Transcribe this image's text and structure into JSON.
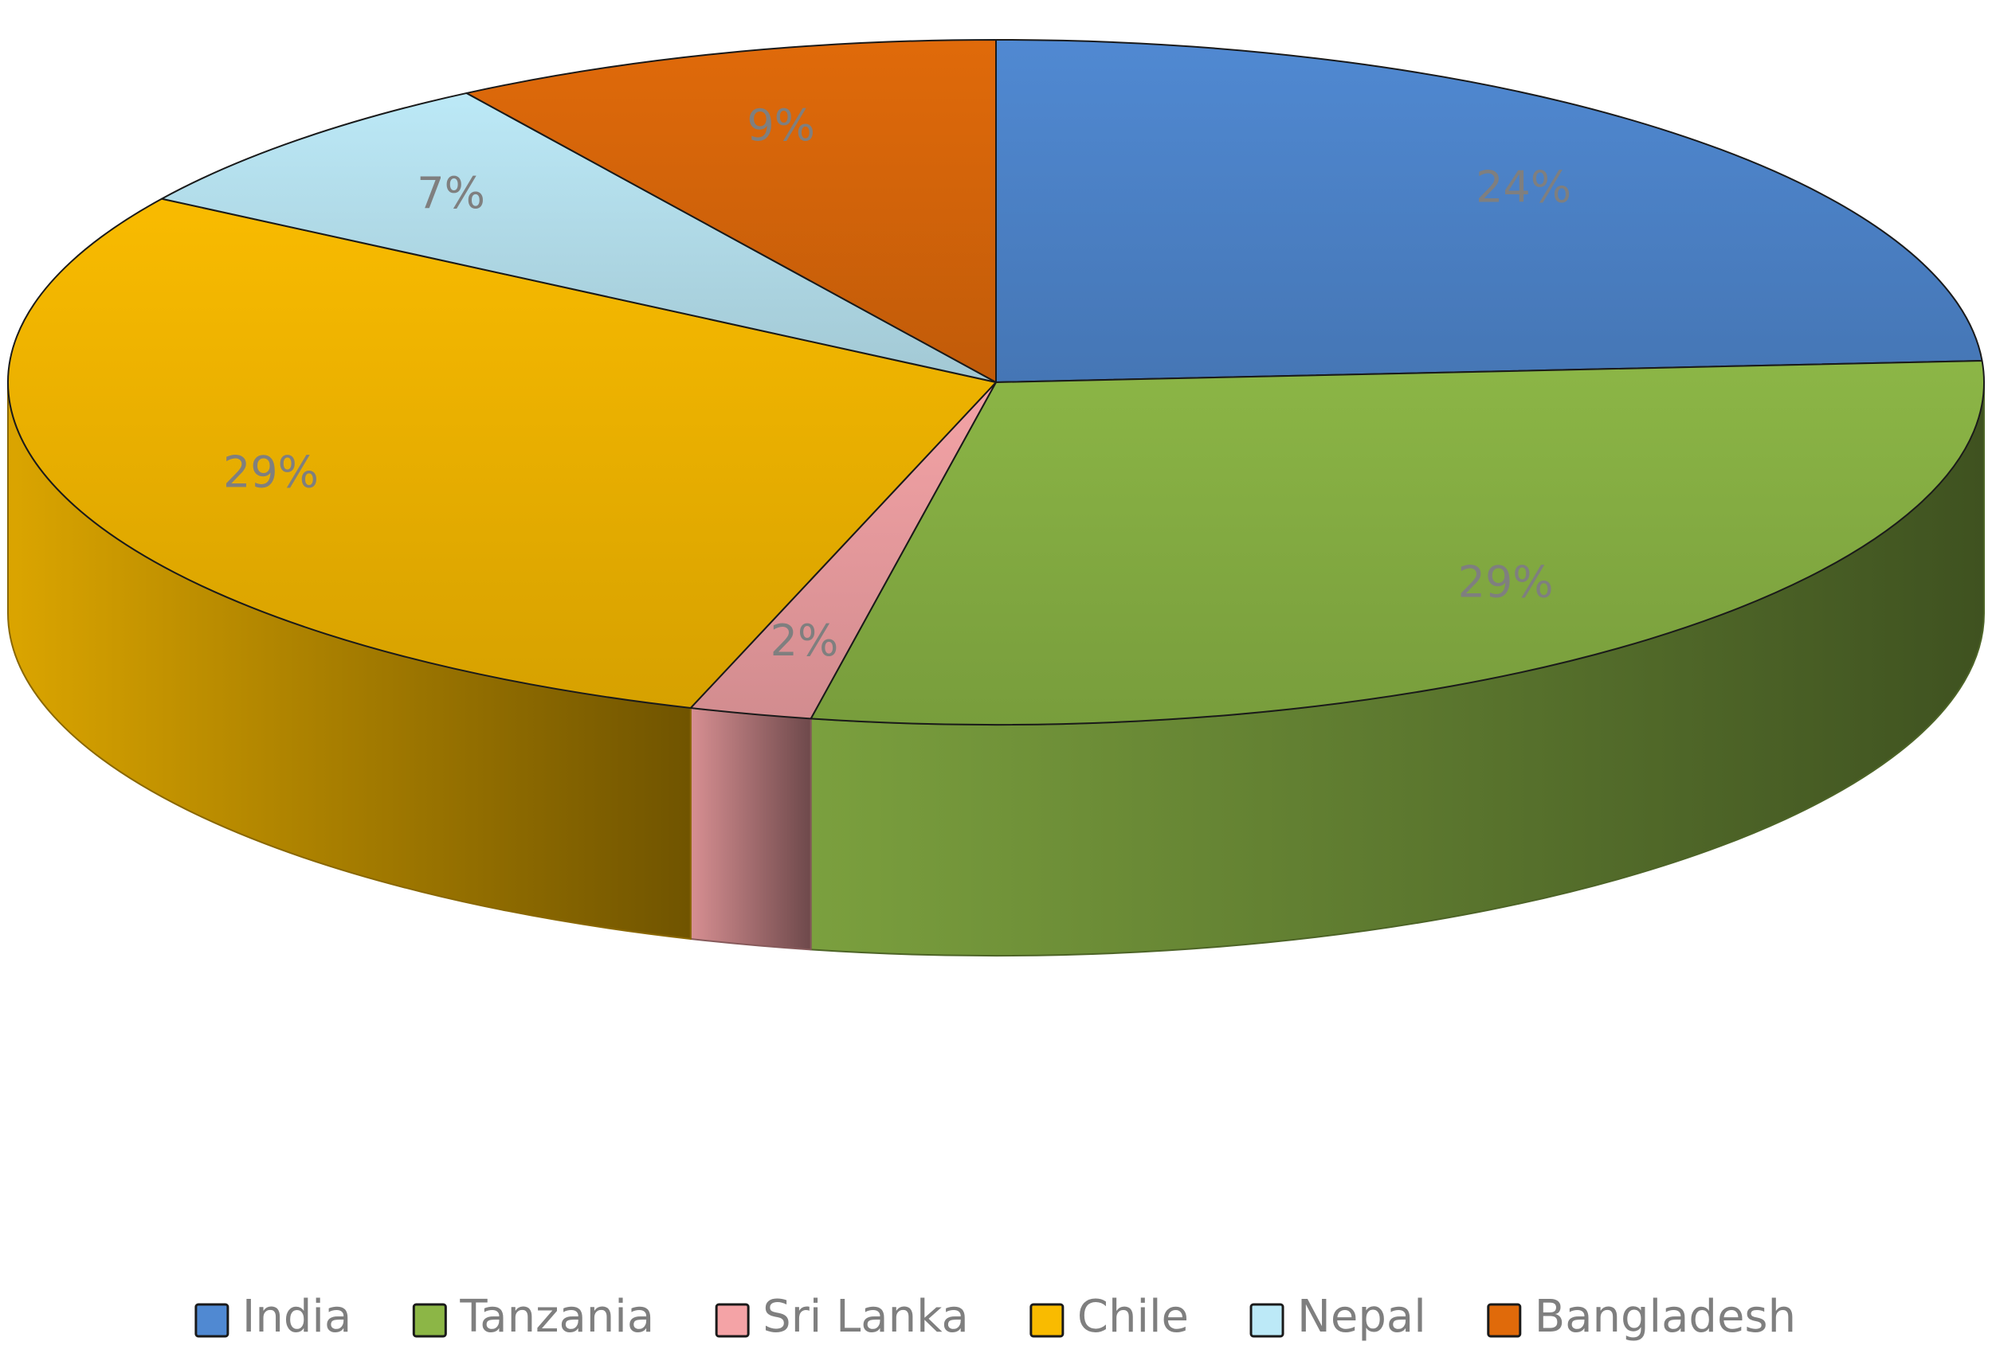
{
  "chart_data": {
    "type": "pie",
    "style": "3d",
    "title": "",
    "categories": [
      "India",
      "Tanzania",
      "Sri Lanka",
      "Chile",
      "Nepal",
      "Bangladesh"
    ],
    "values": [
      24,
      29,
      2,
      29,
      7,
      9
    ],
    "labels": [
      "24%",
      "29%",
      "2%",
      "29%",
      "7%",
      "9%"
    ],
    "colors": [
      "#5089D2",
      "#8CB646",
      "#F4A3A6",
      "#F9BB00",
      "#BCE9F7",
      "#E06A0A"
    ],
    "legend": {
      "position": "bottom",
      "entries": [
        "India",
        "Tanzania",
        "Sri Lanka",
        "Chile",
        "Nepal",
        "Bangladesh"
      ]
    }
  }
}
